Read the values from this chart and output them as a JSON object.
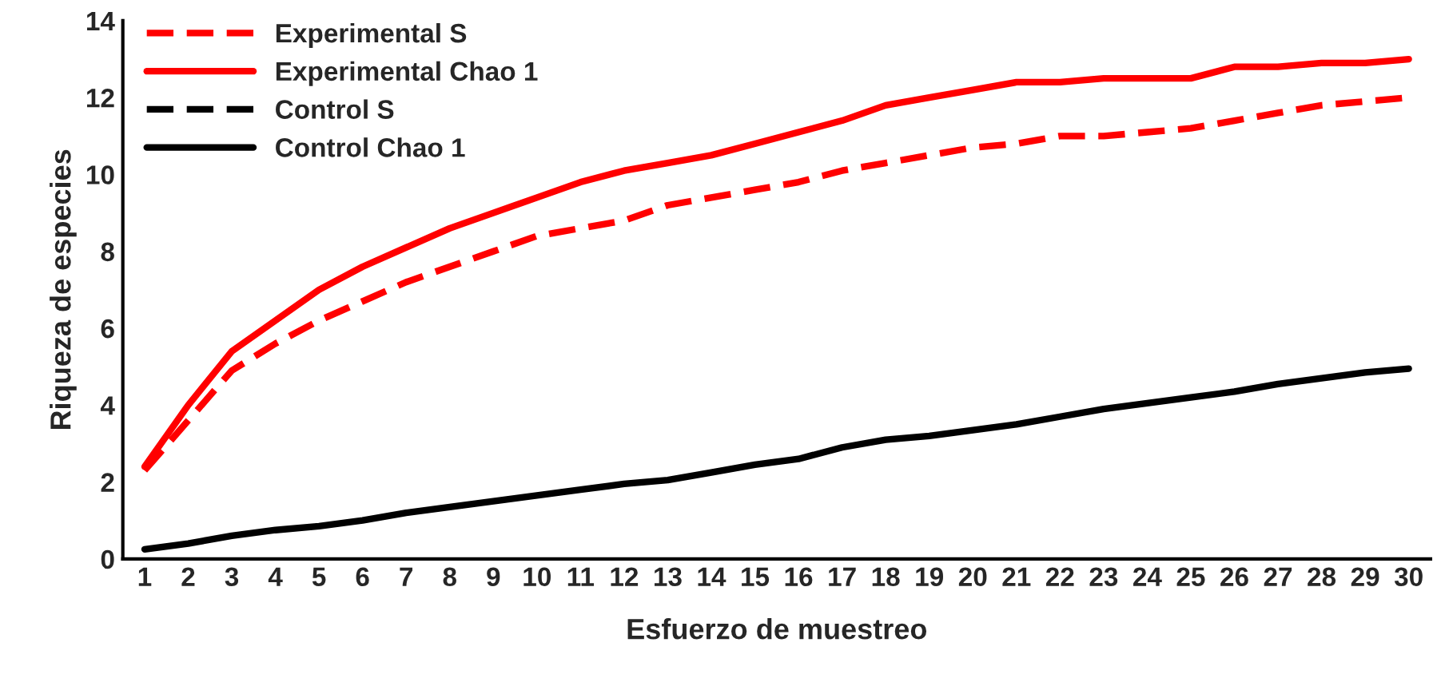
{
  "chart_data": {
    "type": "line",
    "xlabel": "Esfuerzo de muestreo",
    "ylabel": "Riqueza de especies",
    "categories": [
      "1",
      "2",
      "3",
      "4",
      "5",
      "6",
      "7",
      "8",
      "9",
      "10",
      "11",
      "12",
      "13",
      "14",
      "15",
      "16",
      "17",
      "18",
      "19",
      "20",
      "21",
      "22",
      "23",
      "24",
      "25",
      "26",
      "27",
      "28",
      "29",
      "30"
    ],
    "series": [
      {
        "name": "Experimental S",
        "color": "#ff0000",
        "line_style": "dashed",
        "values": [
          2.3,
          3.6,
          4.9,
          5.6,
          6.2,
          6.7,
          7.2,
          7.6,
          8.0,
          8.4,
          8.6,
          8.8,
          9.2,
          9.4,
          9.6,
          9.8,
          10.1,
          10.3,
          10.5,
          10.7,
          10.8,
          11.0,
          11.0,
          11.1,
          11.2,
          11.4,
          11.6,
          11.8,
          11.9,
          12.0
        ]
      },
      {
        "name": "Experimental Chao 1",
        "color": "#ff0000",
        "line_style": "solid",
        "values": [
          2.4,
          4.0,
          5.4,
          6.2,
          7.0,
          7.6,
          8.1,
          8.6,
          9.0,
          9.4,
          9.8,
          10.1,
          10.3,
          10.5,
          10.8,
          11.1,
          11.4,
          11.8,
          12.0,
          12.2,
          12.4,
          12.4,
          12.5,
          12.5,
          12.5,
          12.8,
          12.8,
          12.9,
          12.9,
          13.0
        ]
      },
      {
        "name": "Control S",
        "color": "#000000",
        "line_style": "dashed",
        "values": [
          null,
          null,
          null,
          null,
          null,
          null,
          null,
          null,
          null,
          null,
          null,
          null,
          null,
          null,
          null,
          null,
          null,
          null,
          null,
          null,
          null,
          null,
          null,
          null,
          null,
          null,
          null,
          null,
          null,
          null
        ]
      },
      {
        "name": "Control Chao 1",
        "color": "#000000",
        "line_style": "solid",
        "values": [
          0.25,
          0.4,
          0.6,
          0.75,
          0.85,
          1.0,
          1.2,
          1.35,
          1.5,
          1.65,
          1.8,
          1.95,
          2.05,
          2.25,
          2.45,
          2.6,
          2.9,
          3.1,
          3.2,
          3.35,
          3.5,
          3.7,
          3.9,
          4.05,
          4.2,
          4.35,
          4.55,
          4.7,
          4.85,
          4.95
        ]
      }
    ],
    "ylim": [
      0,
      14
    ],
    "yticks": [
      0,
      2,
      4,
      6,
      8,
      10,
      12,
      14
    ],
    "legend": "top left",
    "grid": false
  }
}
